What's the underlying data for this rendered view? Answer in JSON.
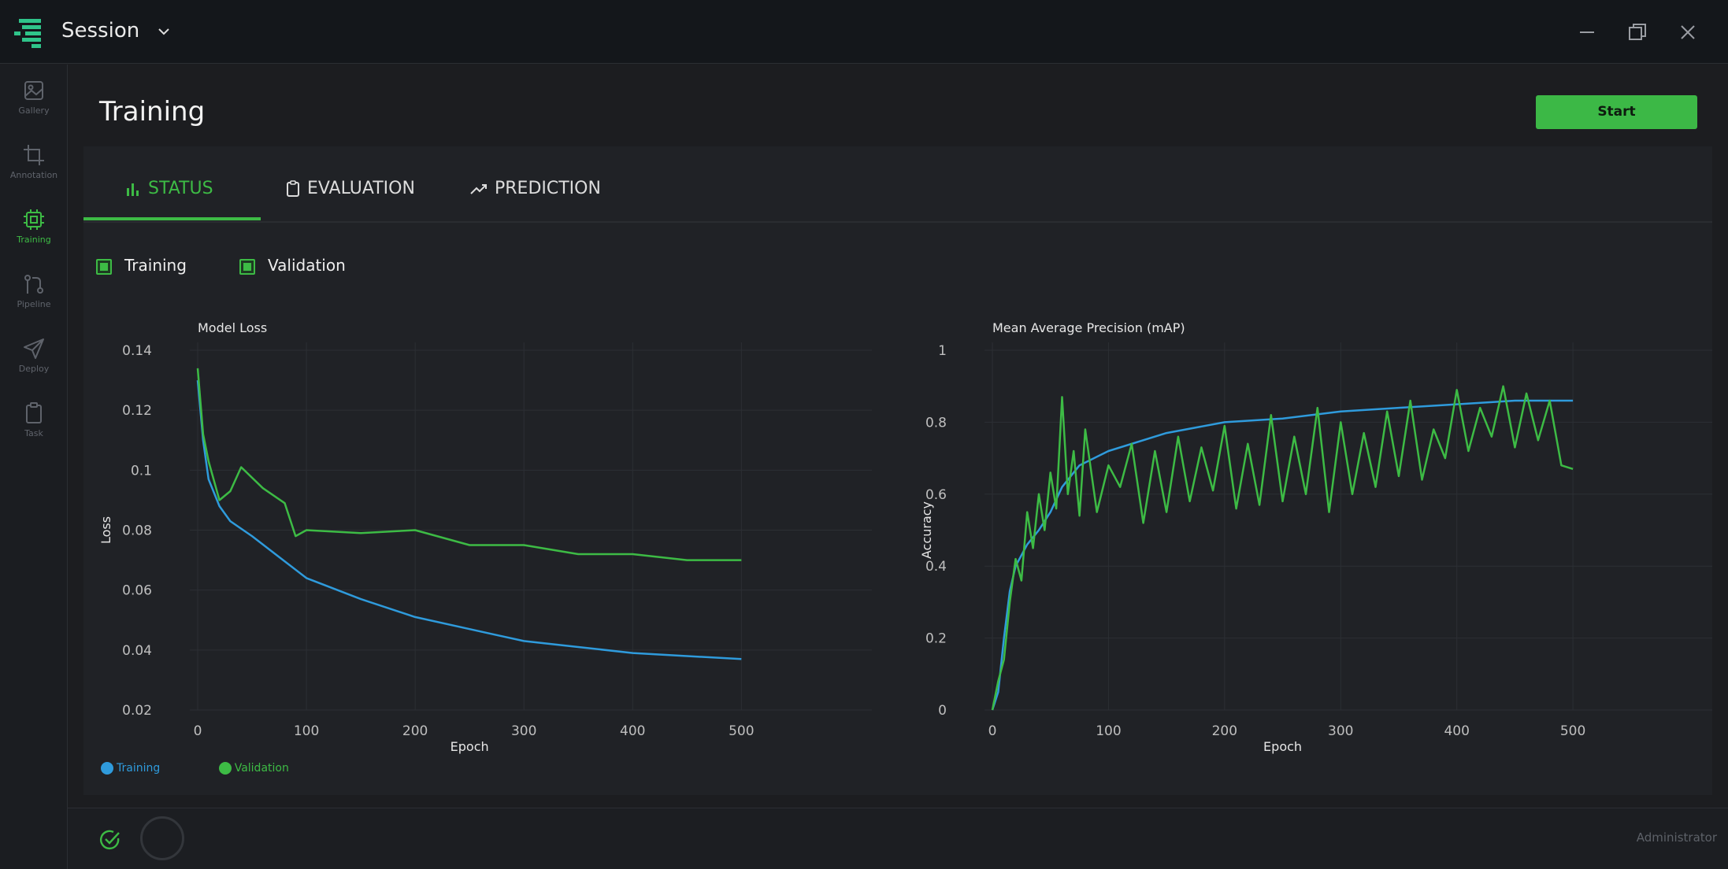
{
  "window": {
    "title": "Session"
  },
  "sidebar": {
    "items": [
      {
        "label": "Gallery",
        "icon": "image-icon"
      },
      {
        "label": "Annotation",
        "icon": "crop-icon"
      },
      {
        "label": "Training",
        "icon": "chip-icon",
        "active": true
      },
      {
        "label": "Pipeline",
        "icon": "pipeline-icon"
      },
      {
        "label": "Deploy",
        "icon": "send-icon"
      },
      {
        "label": "Task",
        "icon": "clipboard-icon"
      }
    ]
  },
  "page": {
    "title": "Training",
    "start_label": "Start"
  },
  "tabs": [
    {
      "label": "STATUS",
      "icon": "bar-chart-icon",
      "active": true
    },
    {
      "label": "EVALUATION",
      "icon": "clipboard-icon"
    },
    {
      "label": "PREDICTION",
      "icon": "trend-icon"
    }
  ],
  "series_toggles": [
    {
      "label": "Training",
      "checked": true
    },
    {
      "label": "Validation",
      "checked": true
    }
  ],
  "legend": [
    {
      "label": "Training",
      "color": "#2f9bdc"
    },
    {
      "label": "Validation",
      "color": "#3dbb45"
    }
  ],
  "colors": {
    "accent": "#3dbb45",
    "training": "#2f9bdc",
    "validation": "#3dbb45"
  },
  "status": {
    "user": "Administrator"
  },
  "chart_data": [
    {
      "type": "line",
      "title": "Model Loss",
      "xlabel": "Epoch",
      "ylabel": "Loss",
      "xlim": [
        0,
        620
      ],
      "ylim": [
        0.02,
        0.14
      ],
      "xticks": [
        0,
        100,
        200,
        300,
        400,
        500
      ],
      "yticks": [
        0.02,
        0.04,
        0.06,
        0.08,
        0.1,
        0.12,
        0.14
      ],
      "ytick_labels": [
        "0.02",
        "0.04",
        "0.06",
        "0.08",
        "0.1",
        "0.12",
        "0.14"
      ],
      "grid": true,
      "series": [
        {
          "name": "Training",
          "x": [
            0,
            5,
            10,
            20,
            30,
            50,
            75,
            100,
            150,
            200,
            250,
            300,
            350,
            400,
            450,
            500
          ],
          "y": [
            0.13,
            0.11,
            0.097,
            0.088,
            0.083,
            0.078,
            0.071,
            0.064,
            0.057,
            0.051,
            0.047,
            0.043,
            0.041,
            0.039,
            0.038,
            0.037
          ]
        },
        {
          "name": "Validation",
          "x": [
            0,
            5,
            10,
            20,
            30,
            40,
            60,
            80,
            90,
            100,
            150,
            200,
            250,
            300,
            350,
            400,
            450,
            500
          ],
          "y": [
            0.134,
            0.112,
            0.103,
            0.09,
            0.093,
            0.101,
            0.094,
            0.089,
            0.078,
            0.08,
            0.079,
            0.08,
            0.075,
            0.075,
            0.072,
            0.072,
            0.07,
            0.07
          ]
        }
      ]
    },
    {
      "type": "line",
      "title": "Mean Average Precision (mAP)",
      "xlabel": "Epoch",
      "ylabel": "Accuracy",
      "xlim": [
        0,
        620
      ],
      "ylim": [
        0,
        1
      ],
      "xticks": [
        0,
        100,
        200,
        300,
        400,
        500
      ],
      "yticks": [
        0,
        0.2,
        0.4,
        0.6,
        0.8,
        1
      ],
      "ytick_labels": [
        "0",
        "0.2",
        "0.4",
        "0.6",
        "0.8",
        "1"
      ],
      "grid": true,
      "series": [
        {
          "name": "Training",
          "x": [
            0,
            5,
            10,
            15,
            20,
            30,
            40,
            50,
            60,
            75,
            100,
            150,
            200,
            250,
            300,
            350,
            400,
            450,
            500
          ],
          "y": [
            0,
            0.05,
            0.2,
            0.33,
            0.4,
            0.46,
            0.5,
            0.55,
            0.62,
            0.68,
            0.72,
            0.77,
            0.8,
            0.81,
            0.83,
            0.84,
            0.85,
            0.86,
            0.86
          ]
        },
        {
          "name": "Validation",
          "x": [
            0,
            5,
            10,
            15,
            20,
            25,
            30,
            35,
            40,
            45,
            50,
            55,
            60,
            65,
            70,
            75,
            80,
            90,
            100,
            110,
            120,
            130,
            140,
            150,
            160,
            170,
            180,
            190,
            200,
            210,
            220,
            230,
            240,
            250,
            260,
            270,
            280,
            290,
            300,
            310,
            320,
            330,
            340,
            350,
            360,
            370,
            380,
            390,
            400,
            410,
            420,
            430,
            440,
            450,
            460,
            470,
            480,
            490,
            500
          ],
          "y": [
            0,
            0.08,
            0.14,
            0.3,
            0.42,
            0.36,
            0.55,
            0.45,
            0.6,
            0.5,
            0.66,
            0.56,
            0.87,
            0.6,
            0.72,
            0.54,
            0.78,
            0.55,
            0.68,
            0.62,
            0.74,
            0.52,
            0.72,
            0.55,
            0.76,
            0.58,
            0.73,
            0.61,
            0.79,
            0.56,
            0.74,
            0.57,
            0.82,
            0.58,
            0.76,
            0.6,
            0.84,
            0.55,
            0.8,
            0.6,
            0.77,
            0.62,
            0.83,
            0.65,
            0.86,
            0.64,
            0.78,
            0.7,
            0.89,
            0.72,
            0.84,
            0.76,
            0.9,
            0.73,
            0.88,
            0.75,
            0.86,
            0.68,
            0.67
          ]
        }
      ]
    }
  ]
}
